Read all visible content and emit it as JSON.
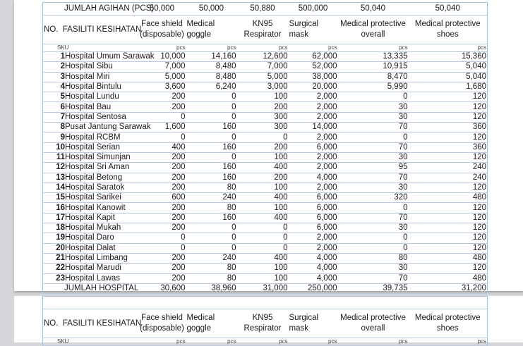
{
  "top_row": {
    "label": "JUMLAH AGIHAN (PCS)",
    "values": [
      "50,000",
      "50,000",
      "50,880",
      "500,000",
      "50,040",
      "50,040"
    ]
  },
  "header": {
    "no": "NO.",
    "facility": "FASILITI KESIHATAN",
    "cols": [
      [
        "Face shield",
        "(disposable)"
      ],
      [
        "Medical",
        "goggle"
      ],
      [
        "KN95",
        "Respirator"
      ],
      [
        "Surgical",
        "mask"
      ],
      [
        "Medical protective",
        "overall"
      ],
      [
        "Medical protective",
        "shoes"
      ]
    ]
  },
  "sku": {
    "label": "SKU",
    "unit": "pcs"
  },
  "rows": [
    [
      "1",
      "Hospital Umum Sarawak",
      "10,000",
      "14,160",
      "12,600",
      "62,000",
      "13,335",
      "15,360"
    ],
    [
      "2",
      "Hospital Sibu",
      "7,000",
      "8,480",
      "7,000",
      "52,000",
      "10,915",
      "5,040"
    ],
    [
      "3",
      "Hospital Miri",
      "5,000",
      "8,480",
      "5,000",
      "38,000",
      "8,470",
      "5,040"
    ],
    [
      "4",
      "Hospital Bintulu",
      "3,600",
      "6,240",
      "3,000",
      "20,000",
      "5,990",
      "1,680"
    ],
    [
      "5",
      "Hospital Lundu",
      "200",
      "0",
      "100",
      "2,000",
      "0",
      "120"
    ],
    [
      "6",
      "Hospital Bau",
      "200",
      "0",
      "200",
      "2,000",
      "30",
      "120"
    ],
    [
      "7",
      "Hospital Sentosa",
      "0",
      "0",
      "300",
      "2,000",
      "30",
      "120"
    ],
    [
      "8",
      "Pusat Jantung Sarawak",
      "1,600",
      "160",
      "300",
      "14,000",
      "70",
      "360"
    ],
    [
      "9",
      "Hospital RCBM",
      "0",
      "0",
      "0",
      "2,000",
      "0",
      "120"
    ],
    [
      "10",
      "Hospital Serian",
      "400",
      "160",
      "200",
      "6,000",
      "70",
      "360"
    ],
    [
      "11",
      "Hospital Simunjan",
      "200",
      "0",
      "100",
      "2,000",
      "30",
      "120"
    ],
    [
      "12",
      "Hospital Sri Aman",
      "200",
      "160",
      "400",
      "2,000",
      "95",
      "240"
    ],
    [
      "13",
      "Hospital Betong",
      "200",
      "160",
      "200",
      "4,000",
      "70",
      "240"
    ],
    [
      "14",
      "Hospital Saratok",
      "200",
      "80",
      "100",
      "2,000",
      "30",
      "120"
    ],
    [
      "15",
      "Hospital Sarikei",
      "600",
      "240",
      "400",
      "6,000",
      "320",
      "480"
    ],
    [
      "16",
      "Hospital Kanowit",
      "200",
      "80",
      "100",
      "6,000",
      "0",
      "120"
    ],
    [
      "17",
      "Hospital Kapit",
      "200",
      "160",
      "400",
      "6,000",
      "70",
      "120"
    ],
    [
      "18",
      "Hospital Mukah",
      "200",
      "0",
      "0",
      "6,000",
      "30",
      "120"
    ],
    [
      "19",
      "Hospital Daro",
      "0",
      "0",
      "0",
      "2,000",
      "0",
      "120"
    ],
    [
      "20",
      "Hospital Dalat",
      "0",
      "0",
      "0",
      "2,000",
      "0",
      "120"
    ],
    [
      "21",
      "Hospital Limbang",
      "200",
      "240",
      "400",
      "4,000",
      "80",
      "480"
    ],
    [
      "22",
      "Hospital Marudi",
      "200",
      "80",
      "100",
      "4,000",
      "30",
      "120"
    ],
    [
      "23",
      "Hospital Lawas",
      "200",
      "80",
      "100",
      "4,000",
      "70",
      "480"
    ]
  ],
  "total": {
    "label": "JUMLAH HOSPITAL",
    "values": [
      "30,600",
      "38,960",
      "31,000",
      "250,000",
      "39,735",
      "31,200"
    ]
  }
}
